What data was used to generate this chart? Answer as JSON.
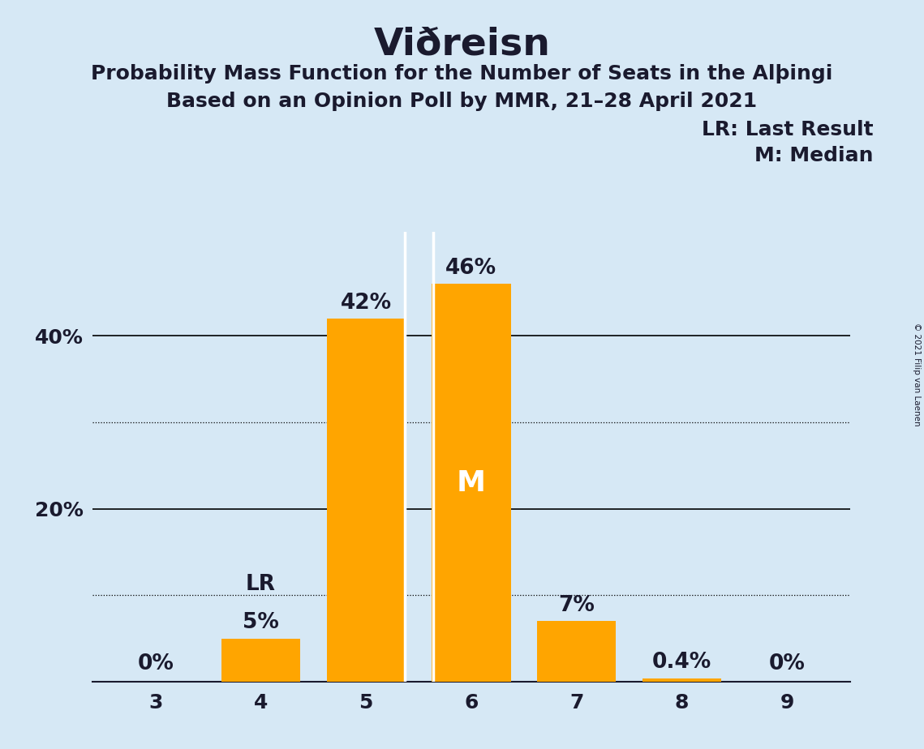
{
  "title": "Viðreisn",
  "subtitle1": "Probability Mass Function for the Number of Seats in the AlþIngi",
  "subtitle2": "Based on an Opinion Poll by MMR, 21–28 April 2021",
  "copyright": "© 2021 Filip van Laenen",
  "legend_lr": "LR: Last Result",
  "legend_m": "M: Median",
  "categories": [
    3,
    4,
    5,
    6,
    7,
    8,
    9
  ],
  "values": [
    0.0,
    5.0,
    42.0,
    46.0,
    7.0,
    0.4,
    0.0
  ],
  "labels": [
    "0%",
    "5%",
    "42%",
    "46%",
    "7%",
    "0.4%",
    "0%"
  ],
  "bar_color": "#FFA500",
  "background_color": "#D6E8F5",
  "text_color": "#1a1a2e",
  "median_bar": 6,
  "lr_bar": 4,
  "median_label": "M",
  "lr_label": "LR",
  "ylim_max": 52,
  "bar_width": 0.75,
  "title_fontsize": 34,
  "subtitle_fontsize": 18,
  "label_fontsize": 19,
  "tick_fontsize": 18,
  "legend_fontsize": 18,
  "median_label_fontsize": 26,
  "solid_gridlines": [
    20,
    40
  ],
  "dotted_gridlines": [
    10,
    30
  ],
  "ytick_positions": [
    20,
    40
  ],
  "ytick_labels": [
    "20%",
    "40%"
  ]
}
